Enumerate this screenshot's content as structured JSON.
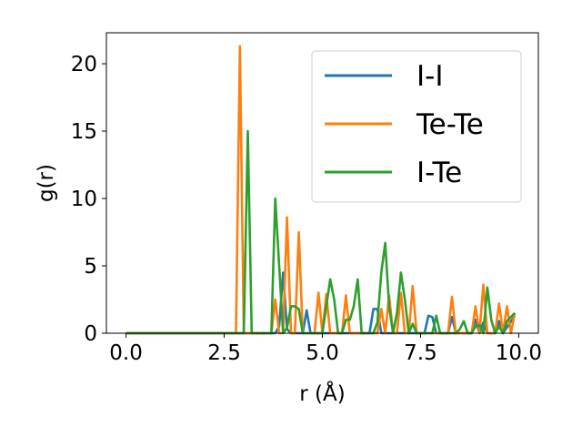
{
  "chart_data": {
    "type": "line",
    "title": "",
    "xlabel": "r (Å)",
    "ylabel": "g(r)",
    "xlim": [
      -0.5,
      10.5
    ],
    "ylim": [
      0,
      22.3
    ],
    "x_ticks": [
      "0.0",
      "2.5",
      "5.0",
      "7.5",
      "10.0"
    ],
    "x_tick_values": [
      0,
      2.5,
      5,
      7.5,
      10
    ],
    "y_ticks": [
      "0",
      "5",
      "10",
      "15",
      "20"
    ],
    "y_tick_values": [
      0,
      5,
      10,
      15,
      20
    ],
    "grid": false,
    "legend_position": "top-right",
    "series": [
      {
        "name": "I-I",
        "color": "#1f77b4",
        "x": [
          0,
          3.8,
          3.9,
          4.0,
          4.1,
          4.2,
          4.5,
          4.6,
          4.7,
          4.8,
          6.2,
          6.3,
          6.4,
          6.5,
          7.6,
          7.7,
          7.8,
          7.9,
          8.2,
          8.3,
          8.4,
          8.8,
          8.9,
          9.0,
          9.1,
          9.2,
          9.4,
          9.5,
          9.6,
          9.9
        ],
        "y": [
          0,
          0,
          0.5,
          4.5,
          0.3,
          0,
          0,
          1.7,
          0,
          0,
          0,
          1.8,
          1.8,
          0,
          0,
          1.3,
          1.2,
          0,
          0,
          1.2,
          0,
          0,
          1.0,
          0,
          0.8,
          0,
          0,
          0.9,
          0,
          1.3
        ]
      },
      {
        "name": "Te-Te",
        "color": "#ff7f0e",
        "x": [
          0,
          2.8,
          2.9,
          3.0,
          3.7,
          3.8,
          3.9,
          4.0,
          4.1,
          4.2,
          4.3,
          4.4,
          4.5,
          4.8,
          4.9,
          5.0,
          5.1,
          5.2,
          5.5,
          5.6,
          5.7,
          6.4,
          6.5,
          6.6,
          6.7,
          6.8,
          6.9,
          7.0,
          7.1,
          7.2,
          7.3,
          7.4,
          8.2,
          8.3,
          8.4,
          8.8,
          8.9,
          9.0,
          9.1,
          9.2,
          9.4,
          9.5,
          9.6,
          9.7,
          9.8,
          9.9
        ],
        "y": [
          0,
          0,
          21.3,
          0,
          0,
          2.5,
          0,
          0,
          8.6,
          0,
          0,
          7.5,
          0,
          0,
          3.0,
          0,
          2.9,
          0,
          0,
          2.8,
          0,
          0,
          1.8,
          0,
          2.8,
          0,
          0,
          3.0,
          0,
          0,
          3.5,
          0,
          0,
          2.7,
          0,
          0,
          2.0,
          0,
          3.6,
          0,
          0,
          2.2,
          0,
          2.0,
          0,
          1.5
        ]
      },
      {
        "name": "I-Te",
        "color": "#2ca02c",
        "x": [
          0,
          3.0,
          3.1,
          3.2,
          3.7,
          3.8,
          3.9,
          4.0,
          4.1,
          4.2,
          4.3,
          4.4,
          4.5,
          5.0,
          5.1,
          5.2,
          5.3,
          5.4,
          5.5,
          5.6,
          5.7,
          5.8,
          5.9,
          6.0,
          6.1,
          6.2,
          6.3,
          6.4,
          6.5,
          6.6,
          6.7,
          6.8,
          6.9,
          7.0,
          7.1,
          7.2,
          7.3,
          7.4,
          7.8,
          7.9,
          8.0,
          8.1,
          8.4,
          8.5,
          8.6,
          8.7,
          8.8,
          8.9,
          9.0,
          9.1,
          9.2,
          9.3,
          9.4,
          9.5,
          9.6,
          9.7,
          9.8,
          9.9
        ],
        "y": [
          0,
          0,
          15.0,
          0,
          0,
          10.0,
          5.0,
          0,
          0.4,
          2.0,
          2.0,
          1.8,
          0,
          0,
          2.0,
          4.0,
          2.5,
          0,
          0,
          1.0,
          1.0,
          2.0,
          4.0,
          0,
          0,
          0,
          0,
          0.8,
          4.5,
          6.7,
          2.0,
          0,
          1.5,
          4.5,
          2.5,
          0,
          0.7,
          0,
          0,
          1.3,
          0,
          0,
          0,
          0.3,
          0.9,
          0,
          0,
          0.5,
          0.6,
          0,
          3.4,
          1.0,
          0,
          0.5,
          0,
          0.9,
          1.2,
          1.5
        ]
      }
    ]
  }
}
